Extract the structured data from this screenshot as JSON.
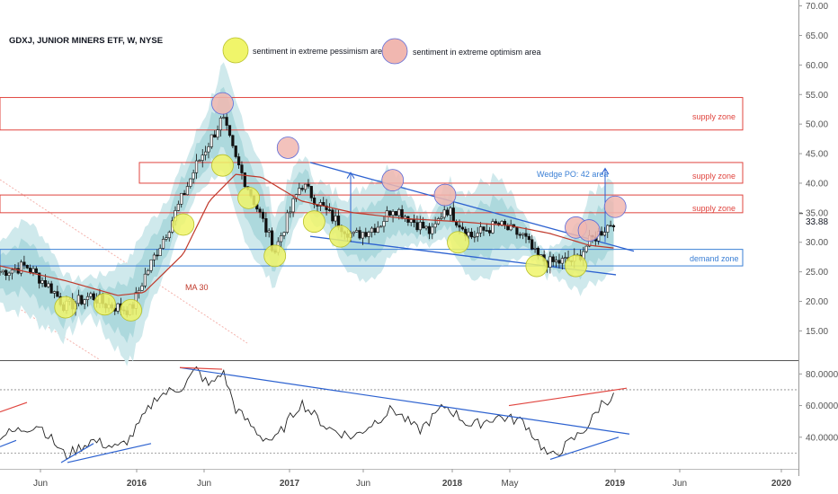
{
  "header": {
    "title": "GDXJ, JUNIOR MINERS ETF, W, NYSE"
  },
  "legend": {
    "pessimism": "sentiment in extreme pessimism area",
    "optimism": "sentiment in extreme optimism area"
  },
  "annotations": {
    "supply_zone_1": "supply zone",
    "supply_zone_2": "supply zone",
    "supply_zone_3": "supply zone",
    "demand_zone": "demand zone",
    "wedge": "Wedge PO: 42 area",
    "ma": "MA 30"
  },
  "colors": {
    "price_band_outer": "#cfe9ec",
    "price_band_inner": "#a9d7dc",
    "ma": "#c0392b",
    "supply": "#e0453f",
    "demand": "#3a7fd5",
    "trend_blue": "#2d62d0",
    "trend_red": "#e0453f",
    "pessimism_fill": "#f0f56a",
    "optimism_fill": "#f1b7b0"
  },
  "chart_data": [
    {
      "type": "candlestick",
      "panel": "price",
      "y_ticks": [
        "70.00",
        "65.00",
        "60.00",
        "55.00",
        "50.00",
        "45.00",
        "40.00",
        "35.00",
        "30.00",
        "25.00",
        "20.00",
        "15.00"
      ],
      "ylim": [
        10.2,
        71
      ],
      "last_price": "33.88",
      "x_ticks": [
        "Jun",
        "2016",
        "Jun",
        "2017",
        "Jun",
        "2018",
        "May",
        "2019",
        "Jun",
        "2020"
      ],
      "xlim": [
        "2015-03",
        "2020-04"
      ],
      "series_keypoints": [
        [
          "2015-03",
          25.0
        ],
        [
          "2015-05",
          26.0
        ],
        [
          "2015-07",
          22.0
        ],
        [
          "2015-08",
          19.0
        ],
        [
          "2015-10",
          21.0
        ],
        [
          "2015-11",
          19.5
        ],
        [
          "2016-01",
          18.5
        ],
        [
          "2016-02",
          24.0
        ],
        [
          "2016-04",
          33.0
        ],
        [
          "2016-06",
          43.0
        ],
        [
          "2016-08",
          51.0
        ],
        [
          "2016-09",
          44.0
        ],
        [
          "2016-11",
          34.0
        ],
        [
          "2016-12",
          28.5
        ],
        [
          "2017-02",
          40.0
        ],
        [
          "2017-04",
          35.0
        ],
        [
          "2017-06",
          31.0
        ],
        [
          "2017-08",
          33.0
        ],
        [
          "2017-09",
          36.0
        ],
        [
          "2017-12",
          31.5
        ],
        [
          "2018-01",
          36.0
        ],
        [
          "2018-03",
          31.0
        ],
        [
          "2018-05",
          33.0
        ],
        [
          "2018-07",
          31.0
        ],
        [
          "2018-08",
          27.5
        ],
        [
          "2018-09",
          26.5
        ],
        [
          "2018-11",
          27.0
        ],
        [
          "2018-12",
          30.0
        ],
        [
          "2019-01",
          32.0
        ],
        [
          "2019-02",
          33.88
        ]
      ],
      "ma30_keypoints": [
        [
          "2015-03",
          26.0
        ],
        [
          "2015-08",
          23.5
        ],
        [
          "2015-12",
          21.0
        ],
        [
          "2016-02",
          21.5
        ],
        [
          "2016-05",
          28.0
        ],
        [
          "2016-07",
          37.0
        ],
        [
          "2016-09",
          41.5
        ],
        [
          "2016-11",
          41.0
        ],
        [
          "2017-02",
          37.0
        ],
        [
          "2017-06",
          35.0
        ],
        [
          "2017-10",
          34.0
        ],
        [
          "2018-02",
          33.5
        ],
        [
          "2018-06",
          32.8
        ],
        [
          "2018-09",
          31.5
        ],
        [
          "2018-12",
          29.5
        ],
        [
          "2019-02",
          29.0
        ]
      ],
      "supply_zones": [
        [
          49.0,
          54.5
        ],
        [
          40.0,
          43.5
        ],
        [
          35.0,
          38.0
        ]
      ],
      "demand_zone": [
        26.0,
        28.8
      ],
      "pessimism_markers": [
        [
          "2015-08",
          19.0
        ],
        [
          "2015-11",
          19.5
        ],
        [
          "2016-01",
          18.5
        ],
        [
          "2016-05",
          33.0
        ],
        [
          "2016-08",
          43.0
        ],
        [
          "2016-10",
          37.5
        ],
        [
          "2016-12",
          27.7
        ],
        [
          "2017-03",
          33.5
        ],
        [
          "2017-05",
          31.0
        ],
        [
          "2018-02",
          30.0
        ],
        [
          "2018-08",
          26.0
        ],
        [
          "2018-11",
          26.0
        ]
      ],
      "optimism_markers": [
        [
          "2016-08",
          53.5
        ],
        [
          "2017-01",
          46.0
        ],
        [
          "2017-09",
          40.5
        ],
        [
          "2018-01",
          38.0
        ],
        [
          "2018-11",
          32.5
        ],
        [
          "2018-12",
          32.0
        ],
        [
          "2019-02",
          36.0
        ]
      ]
    },
    {
      "type": "line",
      "panel": "indicator",
      "y_ticks": [
        "80.0000",
        "60.0000",
        "40.0000"
      ],
      "ylim": [
        20,
        87
      ],
      "ref_lines": [
        70,
        30
      ],
      "keypoints": [
        [
          "2015-03",
          41
        ],
        [
          "2015-06",
          48
        ],
        [
          "2015-08",
          28
        ],
        [
          "2015-10",
          38
        ],
        [
          "2015-12",
          33
        ],
        [
          "2016-01",
          40
        ],
        [
          "2016-03",
          66
        ],
        [
          "2016-05",
          72
        ],
        [
          "2016-06",
          83
        ],
        [
          "2016-07",
          72
        ],
        [
          "2016-08",
          82
        ],
        [
          "2016-09",
          58
        ],
        [
          "2016-11",
          40
        ],
        [
          "2016-12",
          38
        ],
        [
          "2017-02",
          62
        ],
        [
          "2017-04",
          46
        ],
        [
          "2017-06",
          40
        ],
        [
          "2017-08",
          52
        ],
        [
          "2017-09",
          58
        ],
        [
          "2017-11",
          44
        ],
        [
          "2018-01",
          60
        ],
        [
          "2018-03",
          47
        ],
        [
          "2018-05",
          53
        ],
        [
          "2018-07",
          50
        ],
        [
          "2018-09",
          27
        ],
        [
          "2018-10",
          33
        ],
        [
          "2018-11",
          40
        ],
        [
          "2018-12",
          48
        ],
        [
          "2019-01",
          62
        ],
        [
          "2019-02",
          66
        ]
      ]
    }
  ]
}
